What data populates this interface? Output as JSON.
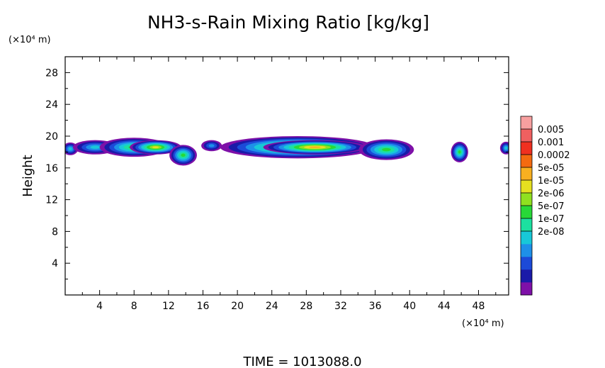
{
  "chart_data": {
    "type": "heatmap",
    "title": "NH3-s-Rain Mixing Ratio [kg/kg]",
    "xlabel": "",
    "ylabel": "Height",
    "x_unit": "(×10⁴ m)",
    "y_unit": "(×10⁴ m)",
    "xlim": [
      0,
      51.5
    ],
    "ylim": [
      0,
      30
    ],
    "xticks": [
      4,
      8,
      12,
      16,
      20,
      24,
      28,
      32,
      36,
      40,
      44,
      48
    ],
    "yticks": [
      4,
      8,
      12,
      16,
      20,
      24,
      28
    ],
    "xtick_labels": [
      "4",
      "8",
      "12",
      "16",
      "20",
      "24",
      "28",
      "32",
      "36",
      "40",
      "44",
      "48"
    ],
    "ytick_labels": [
      "4",
      "8",
      "12",
      "16",
      "20",
      "24",
      "28"
    ],
    "colorbar": {
      "labels": [
        "0.005",
        "0.001",
        "0.0002",
        "5e-05",
        "1e-05",
        "2e-06",
        "5e-07",
        "1e-07",
        "2e-08"
      ],
      "colors_bottom_to_top": [
        "#7e10a8",
        "#1a1aa8",
        "#1c4ad8",
        "#1e90e8",
        "#18c8d8",
        "#1ce0a0",
        "#28d838",
        "#90e020",
        "#e6e020",
        "#f8b020",
        "#f46a10",
        "#f03020",
        "#f06060",
        "#f8a0a0"
      ]
    },
    "blobs": [
      {
        "xc": 0.6,
        "yc": 18.4,
        "rx": 0.9,
        "ry": 0.8,
        "level": 4
      },
      {
        "xc": 3.5,
        "yc": 18.6,
        "rx": 2.6,
        "ry": 0.9,
        "level": 4
      },
      {
        "xc": 8.0,
        "yc": 18.6,
        "rx": 4.0,
        "ry": 1.2,
        "level": 6
      },
      {
        "xc": 10.5,
        "yc": 18.6,
        "rx": 3.0,
        "ry": 0.9,
        "level": 8
      },
      {
        "xc": 13.7,
        "yc": 17.6,
        "rx": 1.6,
        "ry": 1.3,
        "level": 6
      },
      {
        "xc": 17.0,
        "yc": 18.8,
        "rx": 1.2,
        "ry": 0.7,
        "level": 3
      },
      {
        "xc": 27.0,
        "yc": 18.6,
        "rx": 9.0,
        "ry": 1.4,
        "level": 8
      },
      {
        "xc": 29.0,
        "yc": 18.6,
        "rx": 6.0,
        "ry": 0.9,
        "level": 9
      },
      {
        "xc": 37.3,
        "yc": 18.3,
        "rx": 3.2,
        "ry": 1.3,
        "level": 6
      },
      {
        "xc": 45.8,
        "yc": 18.0,
        "rx": 1.0,
        "ry": 1.3,
        "level": 6
      },
      {
        "xc": 51.2,
        "yc": 18.5,
        "rx": 0.7,
        "ry": 0.8,
        "level": 4
      }
    ]
  },
  "footer": {
    "time_label": "TIME  =  1013088.0"
  }
}
